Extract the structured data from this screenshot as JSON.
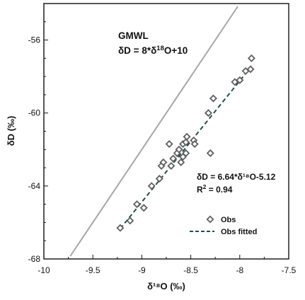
{
  "chart_data": {
    "type": "scatter",
    "xlabel": "δ¹⁸O (‰)",
    "ylabel": "δD (‰)",
    "xlim": [
      -10,
      -7.5
    ],
    "ylim": [
      -68,
      -54
    ],
    "x_ticks": [
      -10,
      -9.5,
      -9,
      -8.5,
      -8,
      -7.5
    ],
    "x_tick_labels": [
      "-10",
      "-9.5",
      "-9",
      "-8.5",
      "-8",
      "-7.5"
    ],
    "y_ticks": [
      -68,
      -64,
      -60,
      -56
    ],
    "y_tick_labels": [
      "-68",
      "-64",
      "-60",
      "-56"
    ],
    "grid": false,
    "legend_position": "bottom-right",
    "gmwl": {
      "title": "GMWL",
      "equation_prefix": "δD = 8*δ",
      "equation_sup": "18",
      "equation_suffix": "O+10",
      "line": {
        "x": [
          -9.73,
          -8.02
        ],
        "y": [
          -67.84,
          -54.16
        ]
      },
      "color": "#a6a6a6"
    },
    "fit": {
      "equation": "δD = 6.64*δ¹⁸O-5.12",
      "r2_prefix": "R",
      "r2_sup": "2",
      "r2_suffix": " = 0.94",
      "line": {
        "x": [
          -9.22,
          -7.88
        ],
        "y": [
          -66.34,
          -57.44
        ]
      },
      "color": "#1f4e4e"
    },
    "series": [
      {
        "name": "Obs",
        "marker": "diamond",
        "color": "#606060",
        "points": [
          [
            -9.22,
            -66.3
          ],
          [
            -9.12,
            -65.9
          ],
          [
            -9.05,
            -65.0
          ],
          [
            -8.98,
            -65.2
          ],
          [
            -8.9,
            -64.0
          ],
          [
            -8.82,
            -63.6
          ],
          [
            -8.8,
            -62.9
          ],
          [
            -8.78,
            -62.7
          ],
          [
            -8.72,
            -61.7
          ],
          [
            -8.7,
            -62.9
          ],
          [
            -8.68,
            -62.5
          ],
          [
            -8.64,
            -62.2
          ],
          [
            -8.62,
            -62.0
          ],
          [
            -8.6,
            -62.7
          ],
          [
            -8.58,
            -62.4
          ],
          [
            -8.58,
            -61.7
          ],
          [
            -8.55,
            -61.6
          ],
          [
            -8.55,
            -62.2
          ],
          [
            -8.54,
            -61.3
          ],
          [
            -8.47,
            -61.5
          ],
          [
            -8.46,
            -61.7
          ],
          [
            -8.32,
            -60.0
          ],
          [
            -8.3,
            -62.2
          ],
          [
            -8.27,
            -59.2
          ],
          [
            -8.05,
            -58.3
          ],
          [
            -8.0,
            -58.2
          ],
          [
            -7.94,
            -57.7
          ],
          [
            -7.89,
            -57.6
          ],
          [
            -7.88,
            -57.0
          ]
        ]
      },
      {
        "name": "Obs fitted",
        "line_style": "dashed",
        "color": "#1f4e4e"
      }
    ]
  }
}
